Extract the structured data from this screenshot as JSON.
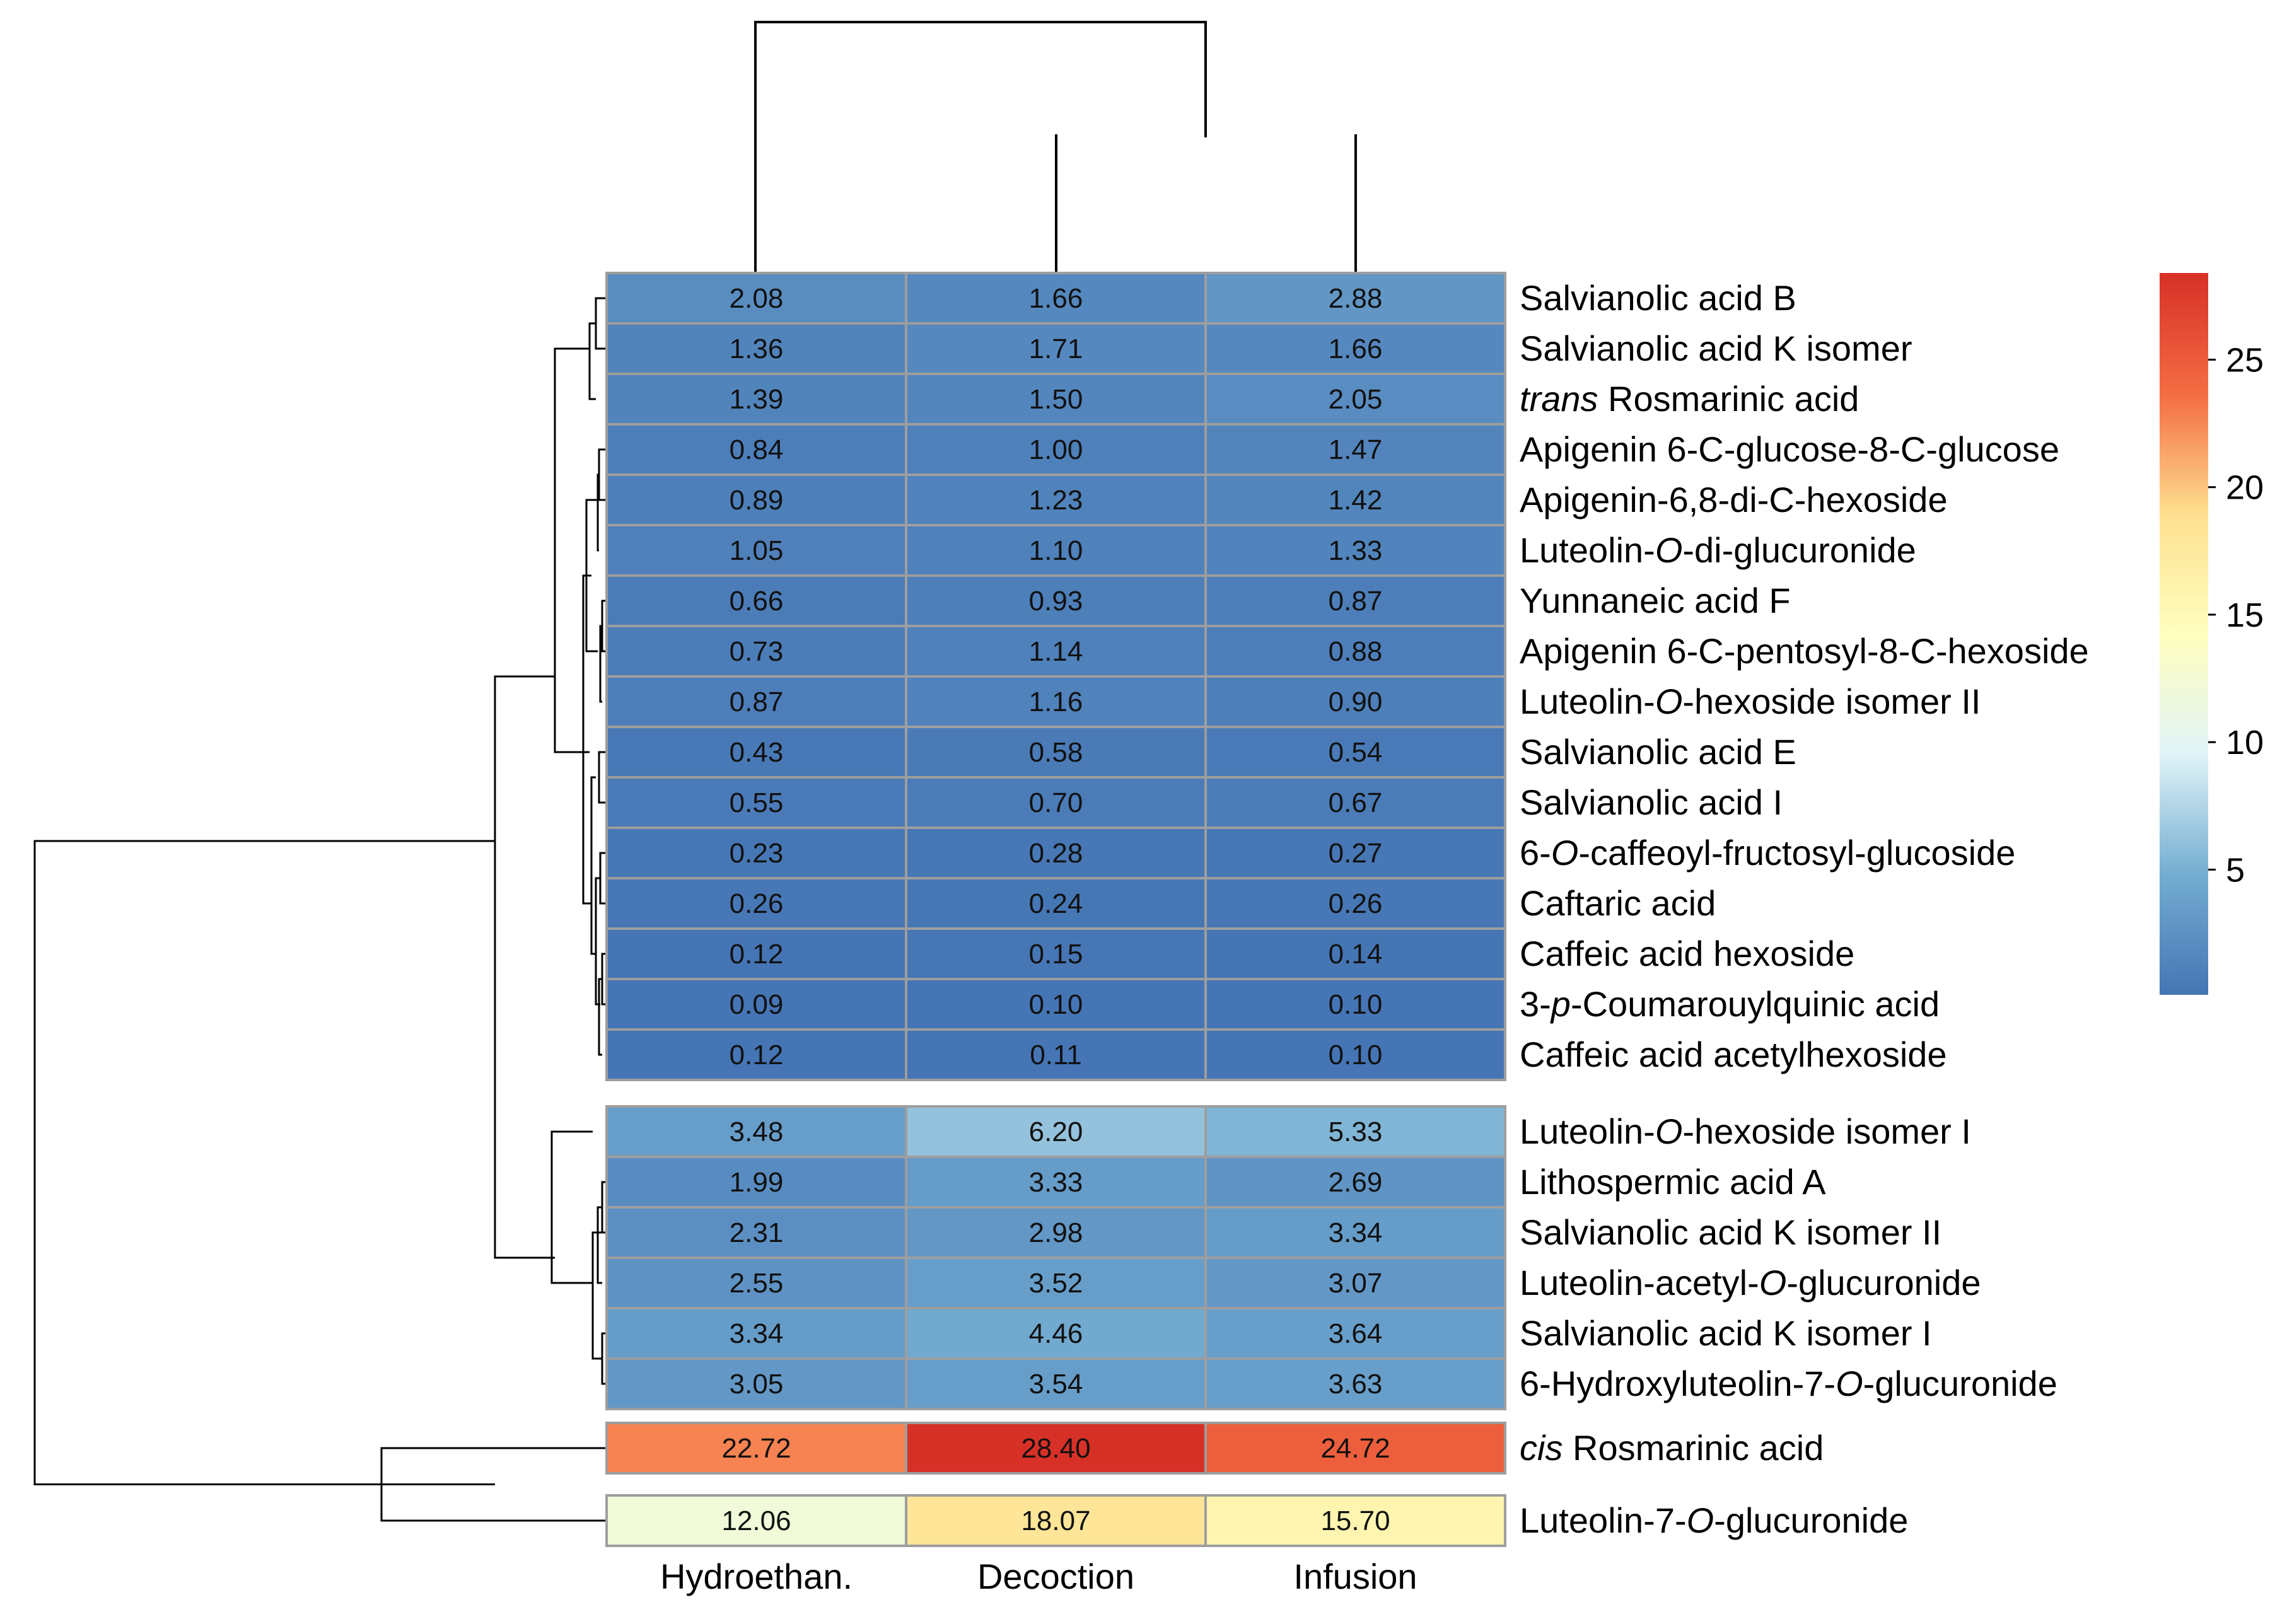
{
  "chart_data": {
    "type": "heatmap",
    "title": "",
    "columns": [
      "Hydroethan.",
      "Decoction",
      "Infusion"
    ],
    "row_groups": [
      {
        "rows": [
          {
            "label": "Salvianolic acid B",
            "values": [
              "2.08",
              "1.66",
              "2.88"
            ]
          },
          {
            "label": "Salvianolic acid K isomer",
            "values": [
              "1.36",
              "1.71",
              "1.66"
            ]
          },
          {
            "label": "trans Rosmarinic acid",
            "label_parts": [
              {
                "t": "trans",
                "i": true
              },
              {
                "t": " Rosmarinic acid",
                "i": false
              }
            ],
            "values": [
              "1.39",
              "1.50",
              "2.05"
            ]
          },
          {
            "label": "Apigenin 6-C-glucose-8-C-glucose",
            "values": [
              "0.84",
              "1.00",
              "1.47"
            ]
          },
          {
            "label": "Apigenin-6,8-di-C-hexoside",
            "values": [
              "0.89",
              "1.23",
              "1.42"
            ]
          },
          {
            "label": "Luteolin-O-di-glucuronide",
            "label_parts": [
              {
                "t": "Luteolin-",
                "i": false
              },
              {
                "t": "O",
                "i": true
              },
              {
                "t": "-di-glucuronide",
                "i": false
              }
            ],
            "values": [
              "1.05",
              "1.10",
              "1.33"
            ]
          },
          {
            "label": "Yunnaneic acid F",
            "values": [
              "0.66",
              "0.93",
              "0.87"
            ]
          },
          {
            "label": "Apigenin 6-C-pentosyl-8-C-hexoside",
            "values": [
              "0.73",
              "1.14",
              "0.88"
            ]
          },
          {
            "label": "Luteolin-O-hexoside isomer II",
            "label_parts": [
              {
                "t": "Luteolin-",
                "i": false
              },
              {
                "t": "O",
                "i": true
              },
              {
                "t": "-hexoside isomer II",
                "i": false
              }
            ],
            "values": [
              "0.87",
              "1.16",
              "0.90"
            ]
          },
          {
            "label": "Salvianolic acid E",
            "values": [
              "0.43",
              "0.58",
              "0.54"
            ]
          },
          {
            "label": "Salvianolic acid I",
            "values": [
              "0.55",
              "0.70",
              "0.67"
            ]
          },
          {
            "label": "6-O-caffeoyl-fructosyl-glucoside",
            "label_parts": [
              {
                "t": "6-",
                "i": false
              },
              {
                "t": "O",
                "i": true
              },
              {
                "t": "-caffeoyl-fructosyl-glucoside",
                "i": false
              }
            ],
            "values": [
              "0.23",
              "0.28",
              "0.27"
            ]
          },
          {
            "label": "Caftaric acid",
            "values": [
              "0.26",
              "0.24",
              "0.26"
            ]
          },
          {
            "label": "Caffeic acid hexoside",
            "values": [
              "0.12",
              "0.15",
              "0.14"
            ]
          },
          {
            "label": "3-p-Coumarouylquinic acid",
            "label_parts": [
              {
                "t": "3-",
                "i": false
              },
              {
                "t": "p",
                "i": true
              },
              {
                "t": "-Coumarouylquinic acid",
                "i": false
              }
            ],
            "values": [
              "0.09",
              "0.10",
              "0.10"
            ]
          },
          {
            "label": "Caffeic acid acetylhexoside",
            "values": [
              "0.12",
              "0.11",
              "0.10"
            ]
          }
        ]
      },
      {
        "rows": [
          {
            "label": "Luteolin-O-hexoside isomer I",
            "label_parts": [
              {
                "t": "Luteolin-",
                "i": false
              },
              {
                "t": "O",
                "i": true
              },
              {
                "t": "-hexoside isomer I",
                "i": false
              }
            ],
            "values": [
              "3.48",
              "6.20",
              "5.33"
            ]
          },
          {
            "label": "Lithospermic acid A",
            "values": [
              "1.99",
              "3.33",
              "2.69"
            ]
          },
          {
            "label": "Salvianolic acid K isomer II",
            "values": [
              "2.31",
              "2.98",
              "3.34"
            ]
          },
          {
            "label": "Luteolin-acetyl-O-glucuronide",
            "label_parts": [
              {
                "t": "Luteolin-acetyl-",
                "i": false
              },
              {
                "t": "O",
                "i": true
              },
              {
                "t": "-glucuronide",
                "i": false
              }
            ],
            "values": [
              "2.55",
              "3.52",
              "3.07"
            ]
          },
          {
            "label": "Salvianolic acid K isomer I",
            "values": [
              "3.34",
              "4.46",
              "3.64"
            ]
          },
          {
            "label": "6-Hydroxyluteolin-7-O-glucuronide",
            "label_parts": [
              {
                "t": "6-Hydroxyluteolin-7-",
                "i": false
              },
              {
                "t": "O",
                "i": true
              },
              {
                "t": "-glucuronide",
                "i": false
              }
            ],
            "values": [
              "3.05",
              "3.54",
              "3.63"
            ]
          }
        ]
      },
      {
        "rows": [
          {
            "label": "cis Rosmarinic acid",
            "label_parts": [
              {
                "t": "cis",
                "i": true
              },
              {
                "t": " Rosmarinic acid",
                "i": false
              }
            ],
            "values": [
              "22.72",
              "28.40",
              "24.72"
            ]
          }
        ]
      },
      {
        "rows": [
          {
            "label": "Luteolin-7-O-glucuronide",
            "label_parts": [
              {
                "t": "Luteolin-7-",
                "i": false
              },
              {
                "t": "O",
                "i": true
              },
              {
                "t": "-glucuronide",
                "i": false
              }
            ],
            "values": [
              "12.06",
              "18.07",
              "15.70"
            ]
          }
        ]
      }
    ],
    "color_scale": {
      "range": [
        0.09,
        28.4
      ],
      "ticks": [
        5,
        10,
        15,
        20,
        25
      ],
      "stops": [
        {
          "value": 0.09,
          "color": "#4575b4"
        },
        {
          "value": 4.8,
          "color": "#74add1"
        },
        {
          "value": 9.5,
          "color": "#e0f3f8"
        },
        {
          "value": 14.2,
          "color": "#ffffbf"
        },
        {
          "value": 18.9,
          "color": "#fee090"
        },
        {
          "value": 23.6,
          "color": "#f46d43"
        },
        {
          "value": 28.4,
          "color": "#d73027"
        }
      ]
    },
    "dendrograms": {
      "columns": "Hydroethan. joins the cluster of Decoction and Infusion",
      "rows": "hierarchical clustering of rows into four groups"
    }
  }
}
